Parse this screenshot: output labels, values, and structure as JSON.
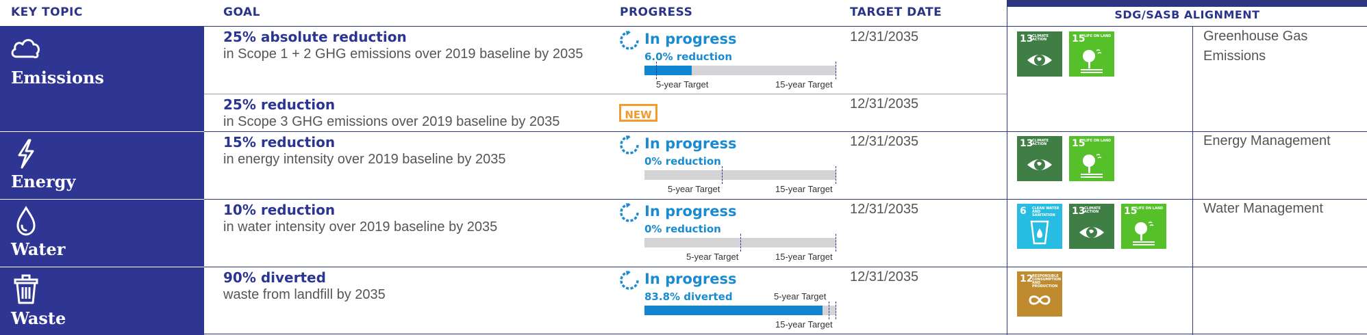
{
  "headers": {
    "key_topic": "KEY TOPIC",
    "goal": "GOAL",
    "progress": "PROGRESS",
    "target_date": "TARGET DATE",
    "sdg_alignment": "SDG/SASB ALIGNMENT"
  },
  "colors": {
    "brand_navy": "#2e3592",
    "progress_blue": "#1a8bd0",
    "new_orange": "#f39a2c",
    "sdg6": "#27bde2",
    "sdg12": "#bf8b2e",
    "sdg13": "#3f7e44",
    "sdg15": "#56c02b"
  },
  "topics": [
    {
      "label": "Emissions",
      "icon": "cloud-icon"
    },
    {
      "label": "Energy",
      "icon": "lightning-icon"
    },
    {
      "label": "Water",
      "icon": "water-drop-icon"
    },
    {
      "label": "Waste",
      "icon": "trash-icon"
    }
  ],
  "goals": [
    {
      "title": "25% absolute reduction",
      "desc": "in Scope 1 + 2 GHG emissions over 2019 baseline by 2035",
      "target_date": "12/31/2035",
      "progress": {
        "status": "In progress",
        "value_text": "6.0% reduction",
        "fraction": 0.245,
        "five_year_tick": 0.06,
        "five_label": "5-year Target",
        "fifteen_label": "15-year Target"
      }
    },
    {
      "title": "25% reduction",
      "desc": "in Scope 3 GHG emissions over 2019 baseline by 2035",
      "target_date": "12/31/2035",
      "badge": "NEW"
    },
    {
      "title": "15% reduction",
      "desc": "in energy intensity over 2019 baseline by 2035",
      "target_date": "12/31/2035",
      "progress": {
        "status": "In progress",
        "value_text": "0% reduction",
        "fraction": 0,
        "five_year_tick": 0.405,
        "five_label": "5-year Target",
        "fifteen_label": "15-year Target"
      }
    },
    {
      "title": "10% reduction",
      "desc": "in water intensity over 2019 baseline by 2035",
      "target_date": "12/31/2035",
      "progress": {
        "status": "In progress",
        "value_text": "0% reduction",
        "fraction": 0,
        "five_year_tick": 0.5,
        "five_label": "5-year Target",
        "fifteen_label": "15-year Target"
      }
    },
    {
      "title": "90% diverted",
      "desc": "waste from landfill by 2035",
      "target_date": "12/31/2035",
      "progress": {
        "status": "In progress",
        "value_text": "83.8% diverted",
        "fraction": 0.93,
        "five_year_tick": 0.96,
        "five_label": "5-year Target",
        "fifteen_label": "15-year Target"
      }
    }
  ],
  "sdg_rows": [
    {
      "tiles": [
        {
          "num": "13",
          "text": "CLIMATE ACTION",
          "icon": "eye-earth-icon"
        },
        {
          "num": "15",
          "text": "LIFE ON LAND",
          "icon": "tree-icon"
        }
      ],
      "sasb": "Greenhouse Gas Emissions"
    },
    {
      "tiles": [
        {
          "num": "13",
          "text": "CLIMATE ACTION",
          "icon": "eye-earth-icon"
        },
        {
          "num": "15",
          "text": "LIFE ON LAND",
          "icon": "tree-icon"
        }
      ],
      "sasb": "Energy Management"
    },
    {
      "tiles": [
        {
          "num": "6",
          "text": "CLEAN WATER AND SANITATION",
          "icon": "water-glass-icon"
        },
        {
          "num": "13",
          "text": "CLIMATE ACTION",
          "icon": "eye-earth-icon"
        },
        {
          "num": "15",
          "text": "LIFE ON LAND",
          "icon": "tree-icon"
        }
      ],
      "sasb": "Water Management"
    },
    {
      "tiles": [
        {
          "num": "12",
          "text": "RESPONSIBLE CONSUMPTION AND PRODUCTION",
          "icon": "infinity-icon"
        }
      ],
      "sasb": ""
    }
  ]
}
